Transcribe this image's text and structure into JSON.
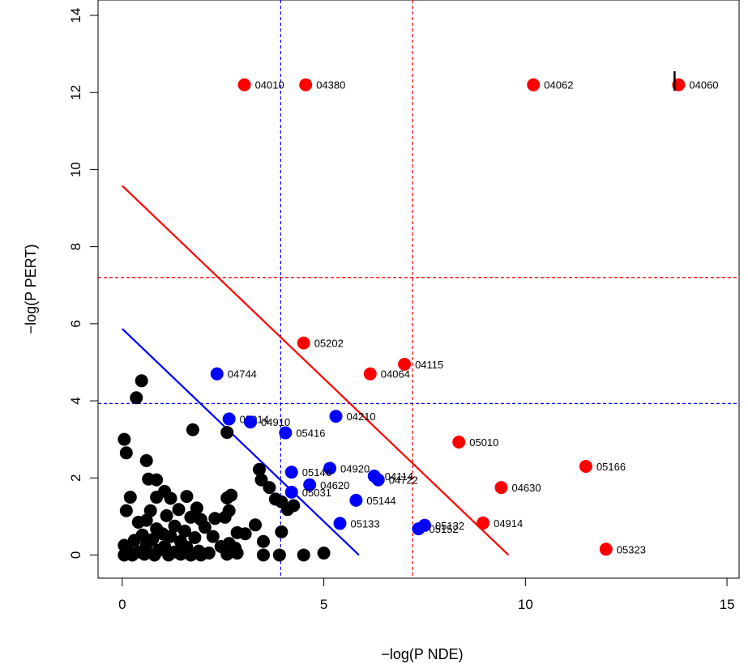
{
  "chart_data": {
    "type": "scatter",
    "title": "",
    "xlabel": "−log(P NDE)",
    "ylabel": "−log(P PERT)",
    "xlim": [
      -0.6,
      15.3
    ],
    "ylim": [
      -0.6,
      14.4
    ],
    "xticks": [
      0,
      5,
      10,
      15
    ],
    "yticks": [
      0,
      2,
      4,
      6,
      8,
      10,
      12,
      14
    ],
    "xtick_labels": [
      "0",
      "5",
      "10",
      "15"
    ],
    "ytick_labels": [
      "0",
      "2",
      "4",
      "6",
      "8",
      "10",
      "12",
      "14"
    ],
    "grid": false,
    "colors": {
      "significant": "#ff0000",
      "moderate": "#0000ff",
      "background": "#000000",
      "red_line": "#ff0000",
      "blue_line": "#0000ff"
    },
    "threshold_lines": {
      "red_vertical_x": 7.2,
      "red_horizontal_y": 7.2,
      "blue_vertical_x": 3.93,
      "blue_horizontal_y": 3.93
    },
    "diagonal_lines": {
      "red": [
        [
          0,
          9.58
        ],
        [
          9.58,
          0
        ]
      ],
      "blue": [
        [
          0,
          5.87
        ],
        [
          5.87,
          0
        ]
      ]
    },
    "red_points": [
      {
        "x": 3.03,
        "y": 12.2,
        "label": "04010"
      },
      {
        "x": 4.55,
        "y": 12.2,
        "label": "04380"
      },
      {
        "x": 10.2,
        "y": 12.2,
        "label": "04062"
      },
      {
        "x": 13.8,
        "y": 12.2,
        "label": "04060"
      },
      {
        "x": 4.5,
        "y": 5.5,
        "label": "05202"
      },
      {
        "x": 7.0,
        "y": 4.95,
        "label": "04115"
      },
      {
        "x": 6.15,
        "y": 4.7,
        "label": "04064"
      },
      {
        "x": 8.35,
        "y": 2.93,
        "label": "05010"
      },
      {
        "x": 11.5,
        "y": 2.3,
        "label": "05166"
      },
      {
        "x": 9.4,
        "y": 1.75,
        "label": "04630"
      },
      {
        "x": 8.95,
        "y": 0.83,
        "label": "04914"
      },
      {
        "x": 12.0,
        "y": 0.15,
        "label": "05323"
      }
    ],
    "blue_points": [
      {
        "x": 2.35,
        "y": 4.7,
        "label": "04744"
      },
      {
        "x": 2.65,
        "y": 3.53,
        "label": "05014"
      },
      {
        "x": 3.18,
        "y": 3.45,
        "label": "04910"
      },
      {
        "x": 5.3,
        "y": 3.6,
        "label": "04210"
      },
      {
        "x": 4.05,
        "y": 3.17,
        "label": "05416"
      },
      {
        "x": 5.15,
        "y": 2.25,
        "label": "04920"
      },
      {
        "x": 4.2,
        "y": 2.15,
        "label": "05146"
      },
      {
        "x": 6.25,
        "y": 2.05,
        "label": "04114"
      },
      {
        "x": 6.35,
        "y": 1.95,
        "label": "04722"
      },
      {
        "x": 4.65,
        "y": 1.82,
        "label": "04620"
      },
      {
        "x": 4.2,
        "y": 1.63,
        "label": "05031"
      },
      {
        "x": 5.8,
        "y": 1.42,
        "label": "05144"
      },
      {
        "x": 5.4,
        "y": 0.82,
        "label": "05133"
      },
      {
        "x": 7.5,
        "y": 0.77,
        "label": "05132"
      },
      {
        "x": 7.35,
        "y": 0.68,
        "label": "05152"
      }
    ],
    "black_points": [
      [
        0.48,
        4.52
      ],
      [
        0.35,
        4.08
      ],
      [
        1.75,
        3.25
      ],
      [
        2.6,
        3.18
      ],
      [
        0.05,
        3.0
      ],
      [
        0.1,
        2.65
      ],
      [
        0.6,
        2.45
      ],
      [
        3.4,
        2.22
      ],
      [
        0.65,
        1.97
      ],
      [
        0.85,
        1.95
      ],
      [
        3.45,
        1.95
      ],
      [
        3.65,
        1.75
      ],
      [
        1.05,
        1.65
      ],
      [
        0.2,
        1.5
      ],
      [
        0.85,
        1.5
      ],
      [
        1.2,
        1.47
      ],
      [
        1.6,
        1.52
      ],
      [
        2.7,
        1.55
      ],
      [
        2.6,
        1.48
      ],
      [
        3.8,
        1.45
      ],
      [
        3.95,
        1.38
      ],
      [
        4.1,
        1.18
      ],
      [
        4.25,
        1.28
      ],
      [
        0.1,
        1.15
      ],
      [
        0.7,
        1.15
      ],
      [
        1.4,
        1.18
      ],
      [
        1.85,
        1.22
      ],
      [
        2.65,
        1.15
      ],
      [
        1.1,
        1.02
      ],
      [
        1.7,
        0.98
      ],
      [
        1.95,
        0.92
      ],
      [
        2.3,
        0.95
      ],
      [
        2.55,
        0.98
      ],
      [
        0.4,
        0.85
      ],
      [
        0.6,
        0.9
      ],
      [
        3.3,
        0.78
      ],
      [
        1.3,
        0.75
      ],
      [
        2.05,
        0.72
      ],
      [
        0.85,
        0.68
      ],
      [
        1.55,
        0.62
      ],
      [
        2.85,
        0.58
      ],
      [
        3.05,
        0.55
      ],
      [
        3.95,
        0.6
      ],
      [
        0.5,
        0.52
      ],
      [
        1.0,
        0.55
      ],
      [
        1.2,
        0.48
      ],
      [
        1.8,
        0.45
      ],
      [
        2.25,
        0.48
      ],
      [
        0.3,
        0.38
      ],
      [
        0.75,
        0.4
      ],
      [
        1.45,
        0.35
      ],
      [
        2.65,
        0.3
      ],
      [
        3.5,
        0.35
      ],
      [
        0.05,
        0.25
      ],
      [
        0.6,
        0.25
      ],
      [
        1.05,
        0.22
      ],
      [
        1.6,
        0.2
      ],
      [
        2.45,
        0.22
      ],
      [
        2.8,
        0.18
      ],
      [
        0.15,
        0.1
      ],
      [
        0.4,
        0.08
      ],
      [
        0.9,
        0.12
      ],
      [
        1.3,
        0.08
      ],
      [
        1.9,
        0.1
      ],
      [
        2.15,
        0.05
      ],
      [
        0.05,
        0.0
      ],
      [
        0.25,
        0.0
      ],
      [
        0.55,
        0.02
      ],
      [
        0.8,
        0.0
      ],
      [
        1.15,
        0.0
      ],
      [
        1.45,
        0.02
      ],
      [
        1.7,
        0.0
      ],
      [
        1.95,
        0.0
      ],
      [
        2.6,
        0.02
      ],
      [
        2.85,
        0.05
      ],
      [
        3.5,
        0.0
      ],
      [
        3.9,
        0.0
      ],
      [
        4.5,
        0.0
      ],
      [
        5.0,
        0.05
      ]
    ],
    "annotation_mark": {
      "x": 13.7,
      "y": 12.3
    }
  }
}
